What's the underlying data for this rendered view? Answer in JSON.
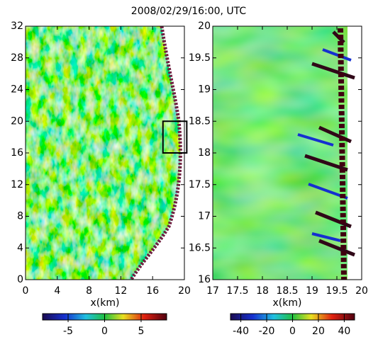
{
  "title": "2008/02/29/16:00, UTC",
  "chart_data": [
    {
      "type": "heatmap",
      "xlabel": "x(km)",
      "xlim": [
        0,
        20
      ],
      "xticks": [
        0,
        4,
        8,
        12,
        16,
        20
      ],
      "ylim": [
        0,
        32
      ],
      "yticks": [
        0,
        4,
        8,
        12,
        16,
        20,
        24,
        28,
        32
      ],
      "zoom_box": {
        "x": [
          17.3,
          20.3
        ],
        "y": [
          16,
          20
        ]
      },
      "colorbar": {
        "lim": [
          -8.5,
          8.5
        ],
        "ticks": [
          -5,
          0,
          5
        ]
      }
    },
    {
      "type": "heatmap",
      "xlabel": "x(km)",
      "xlim": [
        17,
        20
      ],
      "xticks": [
        17,
        17.5,
        18,
        18.5,
        19,
        19.5,
        20
      ],
      "ylim": [
        16,
        20
      ],
      "yticks": [
        16,
        16.5,
        17,
        17.5,
        18,
        18.5,
        19,
        19.5,
        20
      ],
      "colorbar": {
        "lim": [
          -48,
          48
        ],
        "ticks": [
          -40,
          -20,
          0,
          20,
          40
        ]
      }
    }
  ]
}
